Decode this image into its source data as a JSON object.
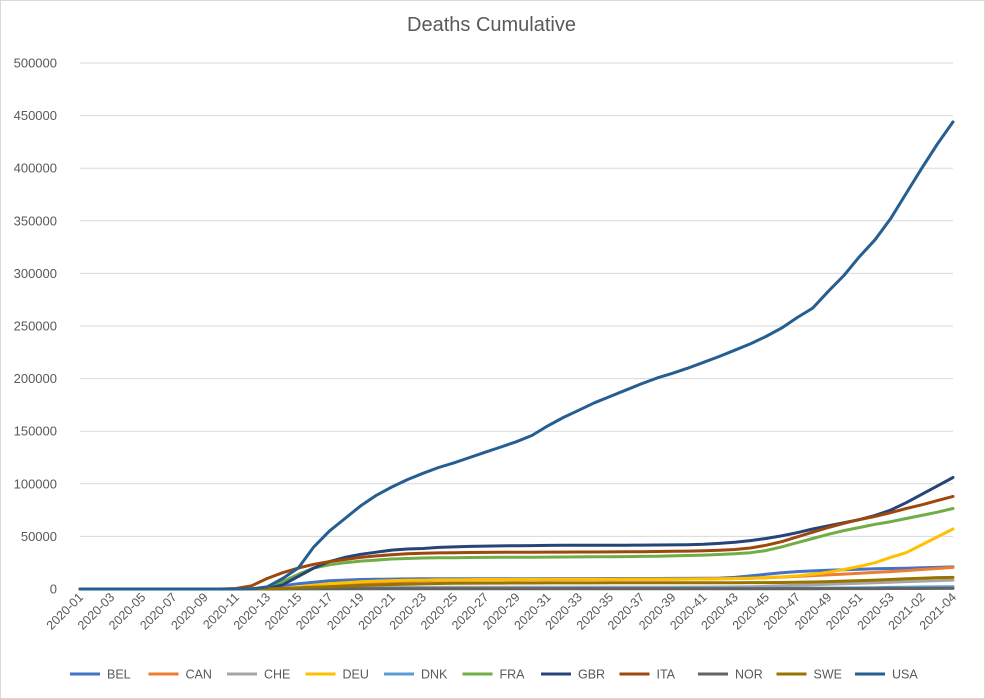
{
  "chart_data": {
    "type": "line",
    "title": "Deaths Cumulative",
    "xlabel": "",
    "ylabel": "",
    "ylim": [
      0,
      500000
    ],
    "yticks": [
      0,
      50000,
      100000,
      150000,
      200000,
      250000,
      300000,
      350000,
      400000,
      450000,
      500000
    ],
    "grid": "horizontal",
    "legend_position": "bottom",
    "x": [
      "2020-01",
      "2020-02",
      "2020-03",
      "2020-04",
      "2020-05",
      "2020-06",
      "2020-07",
      "2020-08",
      "2020-09",
      "2020-10",
      "2020-11",
      "2020-12",
      "2020-13",
      "2020-14",
      "2020-15",
      "2020-16",
      "2020-17",
      "2020-18",
      "2020-19",
      "2020-20",
      "2020-21",
      "2020-22",
      "2020-23",
      "2020-24",
      "2020-25",
      "2020-26",
      "2020-27",
      "2020-28",
      "2020-29",
      "2020-30",
      "2020-31",
      "2020-32",
      "2020-33",
      "2020-34",
      "2020-35",
      "2020-36",
      "2020-37",
      "2020-38",
      "2020-39",
      "2020-40",
      "2020-41",
      "2020-42",
      "2020-43",
      "2020-44",
      "2020-45",
      "2020-46",
      "2020-47",
      "2020-48",
      "2020-49",
      "2020-50",
      "2020-51",
      "2020-52",
      "2020-53",
      "2021-01",
      "2021-02",
      "2021-03",
      "2021-04"
    ],
    "x_tick_labels": [
      "2020-01",
      "2020-03",
      "2020-05",
      "2020-07",
      "2020-09",
      "2020-11",
      "2020-13",
      "2020-15",
      "2020-17",
      "2020-19",
      "2020-21",
      "2020-23",
      "2020-25",
      "2020-27",
      "2020-29",
      "2020-31",
      "2020-33",
      "2020-35",
      "2020-37",
      "2020-39",
      "2020-41",
      "2020-43",
      "2020-45",
      "2020-47",
      "2020-49",
      "2020-51",
      "2020-53",
      "2021-02",
      "2021-04"
    ],
    "series": [
      {
        "name": "BEL",
        "color": "#4472c4",
        "values": [
          0,
          0,
          0,
          0,
          0,
          0,
          0,
          0,
          0,
          0,
          5,
          100,
          1000,
          3000,
          5000,
          6500,
          7800,
          8500,
          9000,
          9200,
          9400,
          9600,
          9700,
          9750,
          9800,
          9800,
          9800,
          9800,
          9800,
          9800,
          9850,
          9850,
          9900,
          9900,
          9950,
          9950,
          10000,
          10000,
          10050,
          10100,
          10200,
          10400,
          11000,
          12500,
          14000,
          15500,
          16500,
          17200,
          17800,
          18300,
          18700,
          19200,
          19500,
          19800,
          20200,
          20500,
          21000
        ]
      },
      {
        "name": "CAN",
        "color": "#ed7d31",
        "values": [
          0,
          0,
          0,
          0,
          0,
          0,
          0,
          0,
          0,
          0,
          0,
          10,
          50,
          300,
          800,
          1500,
          2500,
          3500,
          4500,
          5500,
          6300,
          7300,
          8000,
          8300,
          8500,
          8600,
          8700,
          8800,
          8850,
          8900,
          8950,
          9000,
          9050,
          9100,
          9150,
          9200,
          9250,
          9300,
          9350,
          9450,
          9600,
          9800,
          10000,
          10300,
          10700,
          11300,
          12000,
          12700,
          13400,
          14200,
          15000,
          15800,
          16500,
          17500,
          18500,
          19500,
          20500
        ]
      },
      {
        "name": "CHE",
        "color": "#a5a5a5",
        "values": [
          0,
          0,
          0,
          0,
          0,
          0,
          0,
          0,
          0,
          0,
          0,
          20,
          200,
          500,
          900,
          1200,
          1400,
          1550,
          1650,
          1700,
          1700,
          1700,
          1700,
          1700,
          1700,
          1700,
          1700,
          1700,
          1700,
          1700,
          1700,
          1700,
          1700,
          1700,
          1700,
          1750,
          1750,
          1750,
          1750,
          1800,
          1850,
          1900,
          2000,
          2200,
          2500,
          3000,
          3500,
          4000,
          4500,
          5000,
          5500,
          6000,
          6500,
          7000,
          7500,
          8000,
          8500
        ]
      },
      {
        "name": "DEU",
        "color": "#ffc000",
        "values": [
          0,
          0,
          0,
          0,
          0,
          0,
          0,
          0,
          0,
          0,
          0,
          10,
          100,
          600,
          1800,
          3500,
          5000,
          6000,
          6800,
          7500,
          8000,
          8300,
          8500,
          8700,
          8800,
          8900,
          9000,
          9050,
          9100,
          9150,
          9200,
          9250,
          9300,
          9350,
          9350,
          9400,
          9400,
          9450,
          9500,
          9550,
          9600,
          9700,
          9900,
          10300,
          10900,
          11500,
          12500,
          14000,
          16000,
          18500,
          21500,
          25000,
          30000,
          34500,
          42000,
          49500,
          57000
        ]
      },
      {
        "name": "DNK",
        "color": "#5b9bd5",
        "values": [
          0,
          0,
          0,
          0,
          0,
          0,
          0,
          0,
          0,
          0,
          0,
          5,
          30,
          100,
          200,
          300,
          380,
          440,
          490,
          520,
          540,
          560,
          570,
          580,
          590,
          600,
          600,
          600,
          610,
          610,
          610,
          615,
          620,
          625,
          630,
          635,
          640,
          645,
          650,
          660,
          670,
          680,
          690,
          700,
          720,
          760,
          800,
          830,
          870,
          950,
          1050,
          1250,
          1500,
          1700,
          1900,
          2000,
          2100
        ]
      },
      {
        "name": "FRA",
        "color": "#70ad47",
        "values": [
          0,
          0,
          0,
          0,
          0,
          0,
          0,
          0,
          0,
          0,
          10,
          100,
          1500,
          7000,
          14000,
          20000,
          23000,
          25000,
          26500,
          27500,
          28500,
          29000,
          29500,
          29700,
          29800,
          29900,
          30000,
          30100,
          30200,
          30200,
          30300,
          30400,
          30500,
          30600,
          30700,
          30800,
          31000,
          31200,
          31500,
          31800,
          32200,
          32800,
          33500,
          34500,
          36500,
          40000,
          44000,
          48000,
          52000,
          55500,
          58500,
          61500,
          64000,
          67000,
          70000,
          73000,
          76500
        ]
      },
      {
        "name": "GBR",
        "color": "#264478",
        "values": [
          0,
          0,
          0,
          0,
          0,
          0,
          0,
          0,
          0,
          0,
          0,
          10,
          300,
          4000,
          12000,
          20000,
          26000,
          30000,
          33000,
          35000,
          37000,
          38000,
          38500,
          39500,
          40000,
          40500,
          40800,
          41000,
          41200,
          41300,
          41400,
          41500,
          41500,
          41500,
          41600,
          41600,
          41700,
          41800,
          41900,
          42100,
          42500,
          43300,
          44500,
          46000,
          48000,
          50500,
          53500,
          57000,
          60000,
          63000,
          66000,
          70000,
          75000,
          82000,
          90000,
          98000,
          106000
        ]
      },
      {
        "name": "ITA",
        "color": "#9e480e",
        "values": [
          0,
          0,
          0,
          0,
          0,
          0,
          0,
          0,
          0,
          0,
          500,
          3000,
          10000,
          15500,
          20000,
          23500,
          26000,
          28000,
          30000,
          31500,
          32500,
          33500,
          34000,
          34300,
          34500,
          34700,
          34800,
          34900,
          35000,
          35000,
          35100,
          35100,
          35200,
          35200,
          35300,
          35400,
          35500,
          35600,
          35800,
          36000,
          36300,
          36800,
          37500,
          39000,
          41500,
          45000,
          49500,
          54000,
          58500,
          62500,
          66000,
          69000,
          72500,
          76500,
          80000,
          84000,
          88000
        ]
      },
      {
        "name": "NOR",
        "color": "#636363",
        "values": [
          0,
          0,
          0,
          0,
          0,
          0,
          0,
          0,
          0,
          0,
          0,
          5,
          20,
          100,
          150,
          200,
          210,
          220,
          230,
          235,
          240,
          245,
          245,
          245,
          248,
          250,
          250,
          250,
          252,
          254,
          255,
          256,
          258,
          260,
          262,
          264,
          266,
          268,
          270,
          272,
          274,
          276,
          278,
          280,
          290,
          300,
          310,
          330,
          350,
          380,
          400,
          420,
          450,
          480,
          520,
          550,
          580
        ]
      },
      {
        "name": "SWE",
        "color": "#997300",
        "values": [
          0,
          0,
          0,
          0,
          0,
          0,
          0,
          0,
          0,
          0,
          0,
          10,
          100,
          500,
          1000,
          1600,
          2200,
          2800,
          3300,
          3800,
          4300,
          4700,
          5000,
          5200,
          5400,
          5500,
          5600,
          5650,
          5700,
          5750,
          5780,
          5800,
          5820,
          5840,
          5860,
          5880,
          5900,
          5920,
          5940,
          5960,
          5980,
          6000,
          6020,
          6050,
          6100,
          6200,
          6400,
          6700,
          7000,
          7500,
          8000,
          8500,
          9000,
          9700,
          10300,
          10800,
          11000
        ]
      },
      {
        "name": "USA",
        "color": "#255e91",
        "values": [
          0,
          0,
          0,
          0,
          0,
          0,
          0,
          0,
          0,
          0,
          0,
          50,
          2000,
          10000,
          20000,
          40000,
          55000,
          67000,
          79000,
          89000,
          97000,
          104000,
          110000,
          115500,
          120000,
          125000,
          130000,
          135000,
          140000,
          146000,
          155000,
          163000,
          170000,
          177000,
          183000,
          189000,
          195000,
          200500,
          205000,
          210000,
          215500,
          221000,
          227000,
          233000,
          240000,
          248000,
          258000,
          267000,
          283000,
          298000,
          316000,
          332000,
          352000,
          376000,
          400000,
          423000,
          444000
        ]
      }
    ]
  }
}
